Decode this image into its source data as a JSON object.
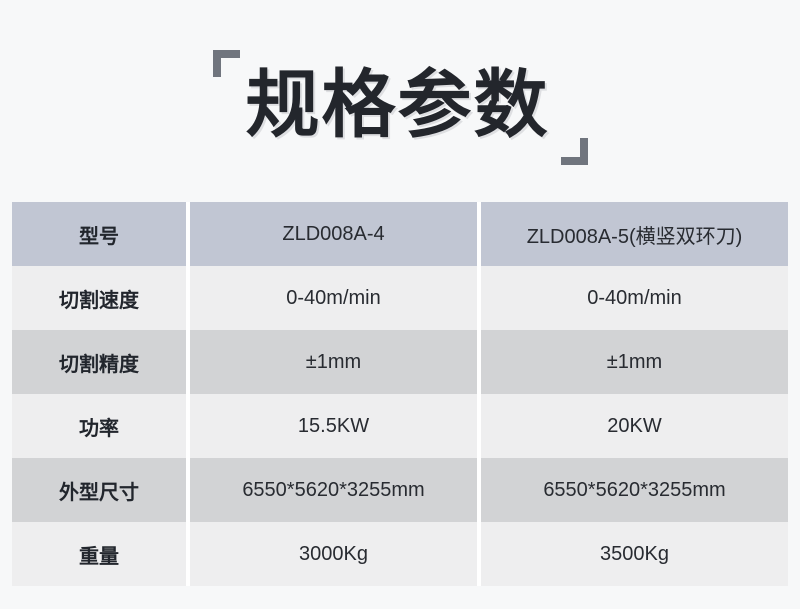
{
  "page": {
    "background_color": "#f7f8f9"
  },
  "title": {
    "text": "规格参数",
    "text_color": "#23262c",
    "bracket_color": "#70757e"
  },
  "spec_table": {
    "rows": [
      {
        "label": "型号",
        "values": [
          "ZLD008A-4",
          "ZLD008A-5(横竖双环刀)"
        ]
      },
      {
        "label": "切割速度",
        "values": [
          "0-40m/min",
          "0-40m/min"
        ]
      },
      {
        "label": "切割精度",
        "values": [
          "±1mm",
          "±1mm"
        ]
      },
      {
        "label": "功率",
        "values": [
          "15.5KW",
          "20KW"
        ]
      },
      {
        "label": "外型尺寸",
        "values": [
          "6550*5620*3255mm",
          "6550*5620*3255mm"
        ]
      },
      {
        "label": "重量",
        "values": [
          "3000Kg",
          "3500Kg"
        ]
      }
    ],
    "colors": {
      "header_row_bg": "#c1c6d3",
      "shaded_row_bg": "#d2d3d5",
      "light_row_bg": "#eeeeef",
      "divider": "#ffffff",
      "label_text": "#22262d",
      "value_text": "#282b31"
    }
  }
}
